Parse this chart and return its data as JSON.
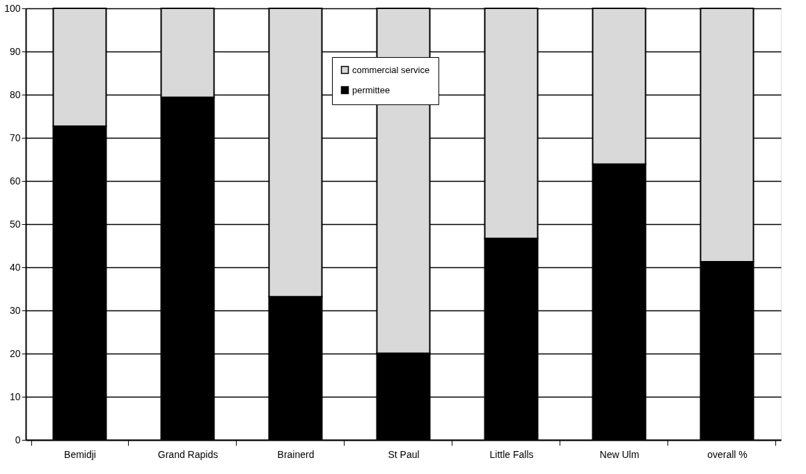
{
  "chart_data": {
    "type": "bar",
    "stacked": true,
    "categories": [
      "Bemidji",
      "Grand Rapids",
      "Brainerd",
      "St Paul",
      "Little Falls",
      "New Ulm",
      "overall %"
    ],
    "series": [
      {
        "name": "permittee",
        "color": "#000000",
        "values": [
          72.7,
          79.4,
          33.2,
          20.1,
          46.7,
          63.9,
          41.3
        ]
      },
      {
        "name": "commercial service",
        "color": "#d9d9d9",
        "values": [
          27.3,
          20.6,
          66.8,
          79.9,
          53.3,
          36.1,
          58.7
        ]
      }
    ],
    "ylim": [
      0,
      100
    ],
    "yticks": [
      0,
      10,
      20,
      30,
      40,
      50,
      60,
      70,
      80,
      90,
      100
    ],
    "grid": "y",
    "legend": "top"
  }
}
